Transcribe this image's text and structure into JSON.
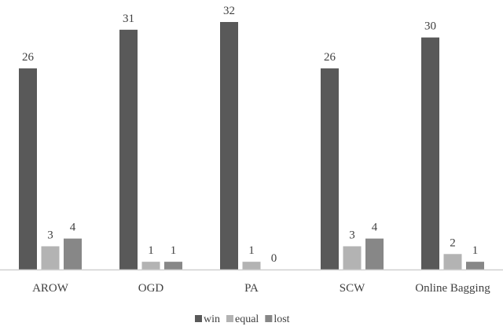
{
  "chart_data": {
    "type": "bar",
    "title": "",
    "xlabel": "",
    "ylabel": "",
    "ylim": [
      0,
      32
    ],
    "grid": false,
    "legend_position": "bottom",
    "categories": [
      "AROW",
      "OGD",
      "PA",
      "SCW",
      "Online Bagging"
    ],
    "series": [
      {
        "name": "win",
        "color": "#595959",
        "values": [
          26,
          31,
          32,
          26,
          30
        ]
      },
      {
        "name": "equal",
        "color": "#b3b3b3",
        "values": [
          3,
          1,
          1,
          3,
          2
        ]
      },
      {
        "name": "lost",
        "color": "#878787",
        "values": [
          4,
          1,
          0,
          4,
          1
        ]
      }
    ]
  }
}
